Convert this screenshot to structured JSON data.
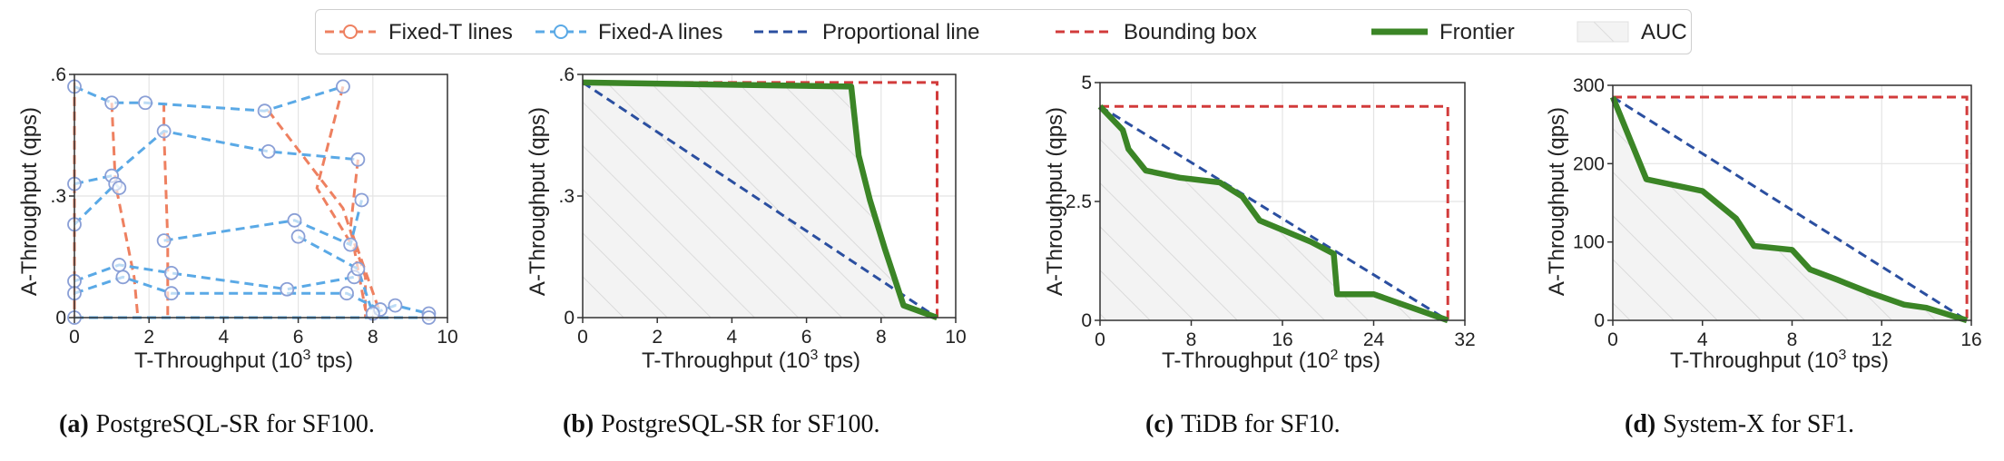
{
  "legend": {
    "fixed_t": "Fixed-T lines",
    "fixed_a": "Fixed-A lines",
    "proportional": "Proportional line",
    "bounding": "Bounding box",
    "frontier": "Frontier",
    "auc": "AUC"
  },
  "colors": {
    "fixed_t": "#ee8060",
    "fixed_a": "#5aa9e6",
    "proportional": "#2b4fa0",
    "bounding": "#d23b3b",
    "frontier": "#3b8526",
    "auc": "#e8e8e8"
  },
  "chart_data": [
    {
      "type": "line",
      "id": "a",
      "caption_label": "(a)",
      "caption_text": "PostgreSQL-SR for SF100.",
      "xlabel_pre": "T-Throughput (10",
      "xlabel_sup": "3",
      "xlabel_post": " tps)",
      "ylabel": "A-Throughput (qps)",
      "xlim": [
        0,
        10
      ],
      "ylim": [
        0,
        0.6
      ],
      "xticks": [
        0,
        2,
        4,
        6,
        8,
        10
      ],
      "xtick_labels": [
        "0",
        "2",
        "4",
        "6",
        "8",
        "10"
      ],
      "yticks": [
        0,
        0.3,
        0.6
      ],
      "ytick_labels": [
        "0",
        ".3",
        ".6"
      ],
      "fixed_t_lines": [
        [
          [
            0,
            0.58
          ],
          [
            0,
            0.3
          ],
          [
            0,
            0
          ]
        ],
        [
          [
            1.0,
            0.53
          ],
          [
            1.1,
            0.33
          ],
          [
            1.6,
            0.1
          ],
          [
            1.7,
            0
          ]
        ],
        [
          [
            2.4,
            0.53
          ],
          [
            2.4,
            0.46
          ],
          [
            2.5,
            0.19
          ],
          [
            2.5,
            0
          ]
        ],
        [
          [
            5.2,
            0.51
          ],
          [
            5.7,
            0.45
          ],
          [
            7.2,
            0.27
          ],
          [
            7.8,
            0.1
          ],
          [
            7.8,
            0
          ]
        ],
        [
          [
            7.2,
            0.57
          ],
          [
            6.5,
            0.32
          ],
          [
            7.5,
            0.17
          ],
          [
            7.8,
            0.02
          ],
          [
            8.0,
            0
          ]
        ],
        [
          [
            7.6,
            0.39
          ],
          [
            7.4,
            0.22
          ],
          [
            8.2,
            0.01
          ]
        ]
      ],
      "fixed_a_lines": [
        [
          [
            0,
            0.57
          ],
          [
            1.0,
            0.53
          ],
          [
            1.9,
            0.53
          ],
          [
            5.1,
            0.51
          ],
          [
            7.2,
            0.57
          ]
        ],
        [
          [
            0,
            0.33
          ],
          [
            1.0,
            0.35
          ],
          [
            2.4,
            0.46
          ],
          [
            5.2,
            0.41
          ],
          [
            7.6,
            0.39
          ]
        ],
        [
          [
            0,
            0.23
          ],
          [
            1.1,
            0.33
          ],
          [
            1.2,
            0.32
          ]
        ],
        [
          [
            0,
            0.09
          ],
          [
            1.2,
            0.13
          ],
          [
            2.6,
            0.11
          ],
          [
            5.7,
            0.07
          ],
          [
            7.5,
            0.1
          ]
        ],
        [
          [
            0,
            0.06
          ],
          [
            1.3,
            0.1
          ],
          [
            2.6,
            0.06
          ],
          [
            7.3,
            0.06
          ],
          [
            8.2,
            0.02
          ]
        ],
        [
          [
            2.4,
            0.19
          ],
          [
            5.9,
            0.24
          ],
          [
            7.4,
            0.18
          ],
          [
            7.7,
            0.29
          ]
        ],
        [
          [
            6.0,
            0.2
          ],
          [
            7.6,
            0.12
          ],
          [
            8.0,
            0.01
          ],
          [
            8.6,
            0.03
          ],
          [
            9.5,
            0.01
          ]
        ],
        [
          [
            0,
            0
          ],
          [
            9.5,
            0
          ]
        ]
      ]
    },
    {
      "type": "line",
      "id": "b",
      "caption_label": "(b)",
      "caption_text": "PostgreSQL-SR for SF100.",
      "xlabel_pre": "T-Throughput (10",
      "xlabel_sup": "3",
      "xlabel_post": " tps)",
      "ylabel": "A-Throughput (qps)",
      "xlim": [
        0,
        10
      ],
      "ylim": [
        0,
        0.6
      ],
      "xticks": [
        0,
        2,
        4,
        6,
        8,
        10
      ],
      "xtick_labels": [
        "0",
        "2",
        "4",
        "6",
        "8",
        "10"
      ],
      "yticks": [
        0,
        0.3,
        0.6
      ],
      "ytick_labels": [
        "0",
        ".3",
        ".6"
      ],
      "frontier": [
        [
          0,
          0.58
        ],
        [
          7.2,
          0.57
        ],
        [
          7.4,
          0.4
        ],
        [
          7.7,
          0.29
        ],
        [
          8.1,
          0.17
        ],
        [
          8.6,
          0.03
        ],
        [
          9.5,
          0
        ]
      ],
      "proportional": [
        [
          0,
          0.58
        ],
        [
          9.5,
          0
        ]
      ],
      "bounding": [
        [
          0,
          0.58
        ],
        [
          9.5,
          0.58
        ],
        [
          9.5,
          0
        ]
      ]
    },
    {
      "type": "line",
      "id": "c",
      "caption_label": "(c)",
      "caption_text": "TiDB for SF10.",
      "xlabel_pre": "T-Throughput (10",
      "xlabel_sup": "2",
      "xlabel_post": " tps)",
      "ylabel": "A-Throughput (qps)",
      "xlim": [
        0,
        32
      ],
      "ylim": [
        0,
        5
      ],
      "xticks": [
        0,
        8,
        16,
        24,
        32
      ],
      "xtick_labels": [
        "0",
        "8",
        "16",
        "24",
        "32"
      ],
      "yticks": [
        0,
        2.5,
        5
      ],
      "ytick_labels": [
        "0",
        "2.5",
        "5"
      ],
      "frontier": [
        [
          0,
          4.5
        ],
        [
          2,
          4.0
        ],
        [
          2.5,
          3.6
        ],
        [
          4,
          3.15
        ],
        [
          7,
          3.0
        ],
        [
          10.5,
          2.9
        ],
        [
          12.5,
          2.6
        ],
        [
          14,
          2.1
        ],
        [
          16,
          1.9
        ],
        [
          18.5,
          1.65
        ],
        [
          20.5,
          1.4
        ],
        [
          20.8,
          0.55
        ],
        [
          24,
          0.55
        ],
        [
          30.5,
          0
        ]
      ],
      "proportional": [
        [
          0,
          4.5
        ],
        [
          30.5,
          0
        ]
      ],
      "bounding": [
        [
          0,
          4.5
        ],
        [
          30.5,
          4.5
        ],
        [
          30.5,
          0
        ]
      ]
    },
    {
      "type": "line",
      "id": "d",
      "caption_label": "(d)",
      "caption_text": "System-X for SF1.",
      "xlabel_pre": "T-Throughput (10",
      "xlabel_sup": "3",
      "xlabel_post": " tps)",
      "ylabel": "A-Throughput (qps)",
      "xlim": [
        0,
        16
      ],
      "ylim": [
        0,
        300
      ],
      "xticks": [
        0,
        4,
        8,
        12,
        16
      ],
      "xtick_labels": [
        "0",
        "4",
        "8",
        "12",
        "16"
      ],
      "yticks": [
        0,
        100,
        200,
        300
      ],
      "ytick_labels": [
        "0",
        "100",
        "200",
        "300"
      ],
      "frontier": [
        [
          0,
          285
        ],
        [
          1.5,
          180
        ],
        [
          4,
          165
        ],
        [
          5.5,
          130
        ],
        [
          6.3,
          95
        ],
        [
          8,
          90
        ],
        [
          8.8,
          65
        ],
        [
          10,
          52
        ],
        [
          11.5,
          35
        ],
        [
          13,
          20
        ],
        [
          14,
          16
        ],
        [
          15.8,
          0
        ]
      ],
      "proportional": [
        [
          0,
          285
        ],
        [
          15.8,
          0
        ]
      ],
      "bounding": [
        [
          0,
          285
        ],
        [
          15.8,
          285
        ],
        [
          15.8,
          0
        ]
      ]
    }
  ]
}
